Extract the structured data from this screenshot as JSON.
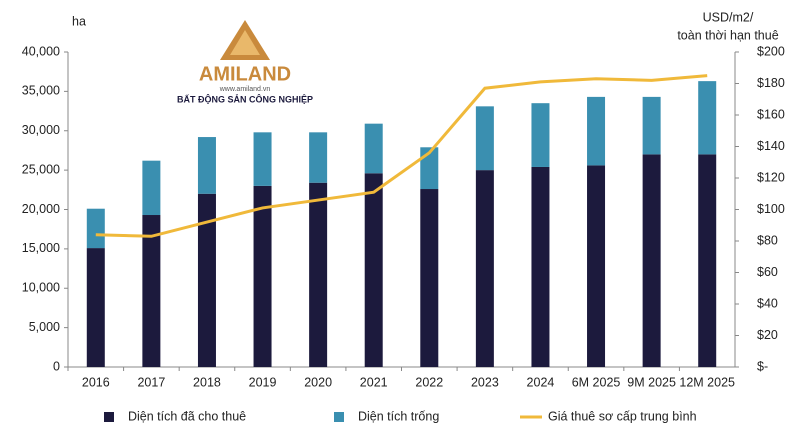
{
  "chart_data": {
    "type": "bar_line",
    "y_label": "ha",
    "y2_label": [
      "USD/m2/",
      "toàn thời hạn thuê"
    ],
    "logo": {
      "name": "AMILAND",
      "url": "www.amiland.vn",
      "tagline": "BẤT ĐỘNG SẢN CÔNG NGHIỆP"
    },
    "categories": [
      "2016",
      "2017",
      "2018",
      "2019",
      "2020",
      "2021",
      "2022",
      "2023",
      "2024",
      "6M 2025",
      "9M 2025",
      "12M 2025"
    ],
    "series": [
      {
        "name": "Diện tích đã cho thuê",
        "color": "#1c1a3d",
        "values": [
          15100,
          19300,
          22000,
          23000,
          23400,
          24600,
          22600,
          25000,
          25400,
          25600,
          27000,
          27000
        ]
      },
      {
        "name": "Diện tích trống",
        "color": "#3a8fb0",
        "values": [
          5000,
          6900,
          7200,
          6800,
          6400,
          6300,
          5300,
          8100,
          8100,
          8700,
          7300,
          9300
        ]
      },
      {
        "name": "Giá thuê sơ cấp trung bình",
        "color": "#f0b93a",
        "axis": "y2",
        "values": [
          84,
          83,
          92,
          101,
          106,
          111,
          136,
          177,
          181,
          183,
          182,
          185
        ]
      }
    ],
    "ylim": [
      0,
      40000
    ],
    "yticks": [
      0,
      {
        "value": 5000,
        "label": "5,000"
      },
      {
        "value": 10000,
        "label": "10,000"
      },
      {
        "value": 15000,
        "label": "15,000"
      },
      {
        "value": 20000,
        "label": "20,000"
      },
      {
        "value": 25000,
        "label": "25,000"
      },
      {
        "value": 30000,
        "label": "30,000"
      },
      {
        "value": 35000,
        "label": "35,000"
      },
      {
        "value": 40000,
        "label": "40,000"
      }
    ],
    "y2lim": [
      0,
      200
    ],
    "y2ticks": [
      {
        "value": 0,
        "label": "$-"
      },
      {
        "value": 20,
        "label": "$20"
      },
      {
        "value": 40,
        "label": "$40"
      },
      {
        "value": 60,
        "label": "$60"
      },
      {
        "value": 80,
        "label": "$80"
      },
      {
        "value": 100,
        "label": "$100"
      },
      {
        "value": 120,
        "label": "$120"
      },
      {
        "value": 140,
        "label": "$140"
      },
      {
        "value": 160,
        "label": "$160"
      },
      {
        "value": 180,
        "label": "$180"
      },
      {
        "value": 200,
        "label": "$200"
      }
    ],
    "legend": "bottom"
  }
}
